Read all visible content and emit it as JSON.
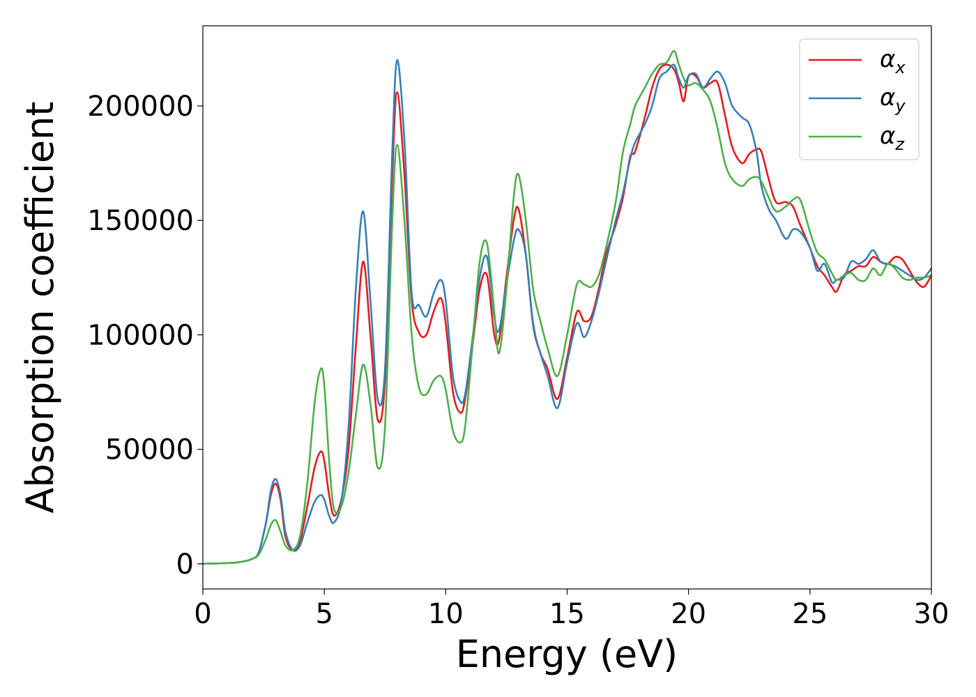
{
  "chart_data": {
    "type": "line",
    "xlabel": "Energy (eV)",
    "ylabel": "Absorption coefficient",
    "xlim": [
      0,
      30
    ],
    "ylim": [
      -11000,
      235000
    ],
    "xticks": [
      0,
      5,
      10,
      15,
      20,
      25,
      30
    ],
    "xtick_labels": [
      "0",
      "5",
      "10",
      "15",
      "20",
      "25",
      "30"
    ],
    "yticks": [
      0,
      50000,
      100000,
      150000,
      200000
    ],
    "ytick_labels": [
      "0",
      "50000",
      "100000",
      "150000",
      "200000"
    ],
    "grid": false,
    "legend_position": "top-right",
    "series": [
      {
        "name": "α",
        "subscript": "x",
        "color": "#e41a1c",
        "x": [
          0,
          1,
          1.5,
          2,
          2.3,
          2.6,
          2.8,
          3.0,
          3.2,
          3.4,
          3.7,
          4.0,
          4.3,
          4.6,
          4.85,
          5.0,
          5.2,
          5.4,
          5.7,
          6.0,
          6.3,
          6.6,
          6.9,
          7.2,
          7.5,
          7.8,
          8.0,
          8.3,
          8.6,
          8.9,
          9.2,
          9.5,
          9.8,
          10.0,
          10.3,
          10.6,
          10.8,
          11.1,
          11.4,
          11.7,
          12.0,
          12.2,
          12.5,
          12.8,
          13.0,
          13.3,
          13.6,
          13.9,
          14.2,
          14.6,
          15.0,
          15.4,
          15.7,
          16.0,
          16.3,
          16.6,
          17.0,
          17.3,
          17.6,
          17.8,
          18.2,
          18.5,
          18.8,
          19.1,
          19.4,
          19.6,
          19.8,
          20.0,
          20.3,
          20.6,
          20.9,
          21.2,
          21.5,
          21.8,
          22.2,
          22.5,
          22.8,
          23.0,
          23.3,
          23.6,
          24.0,
          24.3,
          24.6,
          25.0,
          25.3,
          25.6,
          25.9,
          26.1,
          26.4,
          26.7,
          27.0,
          27.3,
          27.6,
          27.9,
          28.2,
          28.5,
          28.8,
          29.1,
          29.4,
          29.7,
          30.0
        ],
        "y": [
          0,
          300,
          700,
          2000,
          5000,
          18000,
          30000,
          35000,
          28000,
          12000,
          6000,
          10000,
          25000,
          42000,
          49000,
          45000,
          30000,
          21000,
          28000,
          50000,
          95000,
          132000,
          100000,
          63000,
          80000,
          170000,
          206000,
          170000,
          115000,
          101000,
          100000,
          110000,
          116000,
          105000,
          75000,
          66000,
          72000,
          95000,
          120000,
          126000,
          100000,
          98000,
          125000,
          150000,
          155000,
          135000,
          105000,
          92000,
          85000,
          72000,
          90000,
          110000,
          106000,
          108000,
          120000,
          135000,
          148000,
          160000,
          178000,
          180000,
          195000,
          208000,
          216000,
          218000,
          216000,
          210000,
          202000,
          213000,
          213000,
          208000,
          210000,
          210000,
          196000,
          182000,
          175000,
          179000,
          181000,
          180000,
          168000,
          158000,
          158000,
          156000,
          148000,
          138000,
          130000,
          126000,
          121000,
          119000,
          126000,
          128000,
          130000,
          130000,
          134000,
          132000,
          131000,
          134000,
          133000,
          128000,
          123000,
          121000,
          126000
        ]
      },
      {
        "name": "α",
        "subscript": "y",
        "color": "#377eb8",
        "x": [
          0,
          1,
          1.5,
          2,
          2.3,
          2.6,
          2.8,
          3.0,
          3.2,
          3.4,
          3.7,
          4.0,
          4.3,
          4.6,
          4.85,
          5.0,
          5.2,
          5.4,
          5.7,
          6.0,
          6.3,
          6.6,
          6.9,
          7.2,
          7.5,
          7.8,
          8.0,
          8.3,
          8.6,
          8.9,
          9.2,
          9.5,
          9.8,
          10.0,
          10.3,
          10.6,
          10.8,
          11.1,
          11.4,
          11.7,
          12.0,
          12.2,
          12.5,
          12.8,
          13.0,
          13.3,
          13.6,
          13.9,
          14.2,
          14.6,
          15.0,
          15.4,
          15.7,
          16.0,
          16.3,
          16.6,
          17.0,
          17.3,
          17.6,
          17.8,
          18.2,
          18.5,
          18.8,
          19.1,
          19.4,
          19.6,
          19.8,
          20.0,
          20.3,
          20.6,
          20.9,
          21.2,
          21.5,
          21.8,
          22.2,
          22.5,
          22.8,
          23.0,
          23.3,
          23.6,
          24.0,
          24.3,
          24.6,
          25.0,
          25.3,
          25.6,
          25.9,
          26.1,
          26.4,
          26.7,
          27.0,
          27.3,
          27.6,
          27.9,
          28.2,
          28.5,
          28.8,
          29.1,
          29.4,
          29.7,
          30.0
        ],
        "y": [
          0,
          300,
          700,
          2000,
          5000,
          18000,
          32000,
          37000,
          30000,
          14000,
          6000,
          8000,
          18000,
          27000,
          30000,
          28000,
          21000,
          18000,
          27000,
          60000,
          120000,
          154000,
          115000,
          72000,
          85000,
          180000,
          220000,
          185000,
          118000,
          113000,
          108000,
          118000,
          124000,
          115000,
          82000,
          71000,
          74000,
          98000,
          125000,
          134000,
          108000,
          102000,
          122000,
          141000,
          146000,
          135000,
          104000,
          92000,
          82000,
          68000,
          88000,
          105000,
          99000,
          106000,
          118000,
          132000,
          150000,
          162000,
          177000,
          184000,
          192000,
          200000,
          212000,
          215000,
          218000,
          212000,
          208000,
          213000,
          214000,
          208000,
          212000,
          215000,
          210000,
          200000,
          195000,
          192000,
          180000,
          165000,
          155000,
          150000,
          142000,
          146000,
          145000,
          138000,
          128000,
          131000,
          123000,
          124000,
          125000,
          132000,
          131000,
          133000,
          137000,
          132000,
          131000,
          130000,
          128000,
          126000,
          124000,
          125000,
          129000
        ]
      },
      {
        "name": "α",
        "subscript": "z",
        "color": "#4daf4a",
        "x": [
          0,
          1,
          1.5,
          2,
          2.3,
          2.6,
          2.8,
          3.0,
          3.2,
          3.4,
          3.7,
          4.0,
          4.3,
          4.6,
          4.85,
          5.0,
          5.2,
          5.4,
          5.7,
          6.0,
          6.3,
          6.6,
          6.9,
          7.2,
          7.5,
          7.8,
          8.0,
          8.3,
          8.6,
          8.9,
          9.2,
          9.5,
          9.8,
          10.0,
          10.3,
          10.6,
          10.8,
          11.1,
          11.4,
          11.7,
          12.0,
          12.2,
          12.5,
          12.8,
          13.0,
          13.3,
          13.6,
          13.9,
          14.2,
          14.6,
          15.0,
          15.4,
          15.7,
          16.0,
          16.3,
          16.6,
          17.0,
          17.3,
          17.6,
          17.8,
          18.2,
          18.5,
          18.8,
          19.1,
          19.4,
          19.6,
          19.8,
          20.0,
          20.3,
          20.6,
          20.9,
          21.2,
          21.5,
          21.8,
          22.2,
          22.5,
          22.8,
          23.0,
          23.3,
          23.6,
          24.0,
          24.3,
          24.6,
          25.0,
          25.3,
          25.6,
          25.9,
          26.1,
          26.4,
          26.7,
          27.0,
          27.3,
          27.6,
          27.9,
          28.2,
          28.5,
          28.8,
          29.1,
          29.4,
          29.7,
          30.0
        ],
        "y": [
          0,
          300,
          700,
          2000,
          4000,
          11000,
          17000,
          19000,
          14000,
          8000,
          6000,
          12000,
          35000,
          70000,
          85000,
          78000,
          45000,
          24000,
          25000,
          40000,
          65000,
          87000,
          70000,
          42000,
          60000,
          150000,
          183000,
          150000,
          100000,
          77000,
          74000,
          80000,
          82000,
          76000,
          58000,
          53000,
          60000,
          95000,
          132000,
          140000,
          110000,
          92000,
          120000,
          160000,
          170000,
          150000,
          120000,
          106000,
          94000,
          82000,
          100000,
          122000,
          122000,
          121000,
          126000,
          138000,
          158000,
          180000,
          192000,
          200000,
          208000,
          214000,
          218000,
          219000,
          224000,
          218000,
          212000,
          209000,
          210000,
          207000,
          202000,
          190000,
          175000,
          168000,
          165000,
          168000,
          169000,
          167000,
          160000,
          154000,
          156000,
          159000,
          159000,
          145000,
          136000,
          133000,
          127000,
          124000,
          126000,
          127000,
          124000,
          124000,
          129000,
          126000,
          131000,
          129000,
          125000,
          124000,
          125000,
          125000,
          126000
        ]
      }
    ]
  }
}
